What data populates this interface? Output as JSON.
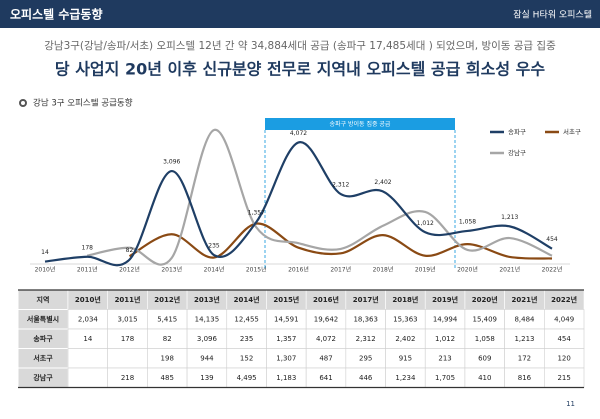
{
  "header": {
    "title": "오피스텔 수급동향",
    "right": "잠실 H타워 오피스텔"
  },
  "subtitle": "강남3구(강남/송파/서초) 오피스텔 12년 간 약 34,884세대 공급 (송파구 17,485세대 ) 되었으며, 방이동 공급 집중",
  "headline": "당 사업지 20년 이후 신규분양 전무로 지역내 오피스텔 공급 희소성 우수",
  "section_title": "강남 3구 오피스텔 공급동향",
  "chart_data": {
    "type": "line",
    "categories": [
      "2010년",
      "2011년",
      "2012년",
      "2013년",
      "2014년",
      "2015년",
      "2016년",
      "2017년",
      "2018년",
      "2019년",
      "2020년",
      "2021년",
      "2022년"
    ],
    "annotation": "송파구 방이동 집중 공급",
    "series": [
      {
        "name": "송파구",
        "color": "#1f3f66",
        "values": [
          14,
          178,
          82,
          3096,
          235,
          1357,
          4072,
          2312,
          2402,
          1012,
          1058,
          1213,
          454
        ],
        "value_labels": [
          "14",
          "178",
          "82",
          "3,096",
          "235",
          "1,357",
          "4,072",
          "2,312",
          "2,402",
          "1,012",
          "1,058",
          "1,213",
          "454"
        ]
      },
      {
        "name": "서초구",
        "color": "#8a4a14",
        "values": [
          null,
          null,
          198,
          944,
          152,
          1307,
          487,
          295,
          915,
          213,
          609,
          172,
          120
        ],
        "value_labels": [
          null,
          null,
          "198",
          "944",
          "152",
          "1,307",
          "487",
          "295",
          "915",
          "213",
          "609",
          "172",
          "120"
        ]
      },
      {
        "name": "강남구",
        "color": "#a6a6a6",
        "values": [
          null,
          218,
          485,
          139,
          4495,
          1183,
          641,
          446,
          1234,
          1705,
          410,
          816,
          215
        ],
        "value_labels": [
          null,
          "218",
          "485",
          "139",
          "4,495",
          "1,183",
          "641",
          "446",
          "1,234",
          "1,705",
          "410",
          "816",
          "215"
        ]
      }
    ]
  },
  "table": {
    "header": "지역",
    "seoul": {
      "name": "서울특별시",
      "values": [
        2034,
        3015,
        5415,
        14135,
        12455,
        14591,
        19642,
        18363,
        15363,
        14994,
        15409,
        8484,
        4049
      ],
      "value_labels": [
        "2,034",
        "3,015",
        "5,415",
        "14,135",
        "12,455",
        "14,591",
        "19,642",
        "18,363",
        "15,363",
        "14,994",
        "15,409",
        "8,484",
        "4,049"
      ]
    }
  },
  "footer": {
    "page": "11"
  }
}
